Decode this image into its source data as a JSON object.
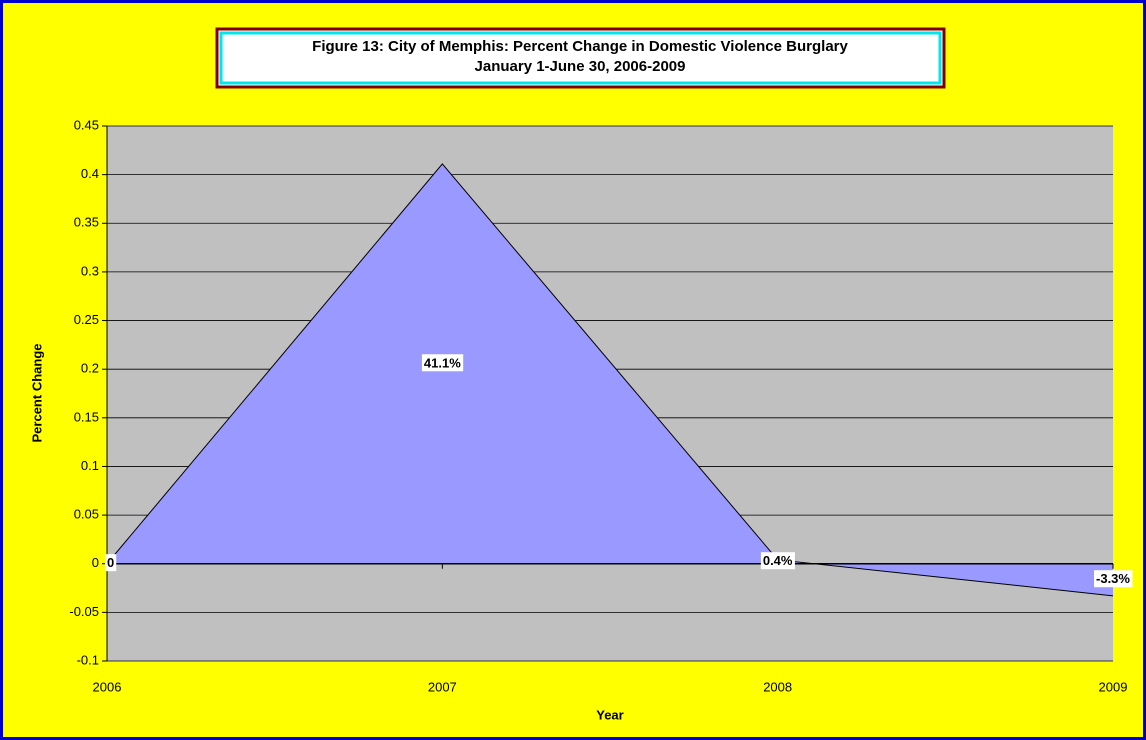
{
  "chart_data": {
    "type": "area",
    "title": [
      "Figure 13: City of Memphis: Percent Change in Domestic Violence Burglary",
      "January 1-June 30, 2006-2009"
    ],
    "x_label": "Year",
    "y_label": "Percent Change",
    "categories": [
      "2006",
      "2007",
      "2008",
      "2009"
    ],
    "values": [
      0,
      0.411,
      0.004,
      -0.033
    ],
    "value_labels": [
      "0",
      "41.1%",
      "0.4%",
      "-3.3%"
    ],
    "color": "#9999ff",
    "ylim": [
      -0.1,
      0.45
    ],
    "yticks": [
      -0.1,
      -0.05,
      0,
      0.05,
      0.1,
      0.15,
      0.2,
      0.25,
      0.3,
      0.35,
      0.4,
      0.45
    ],
    "grid": true
  }
}
